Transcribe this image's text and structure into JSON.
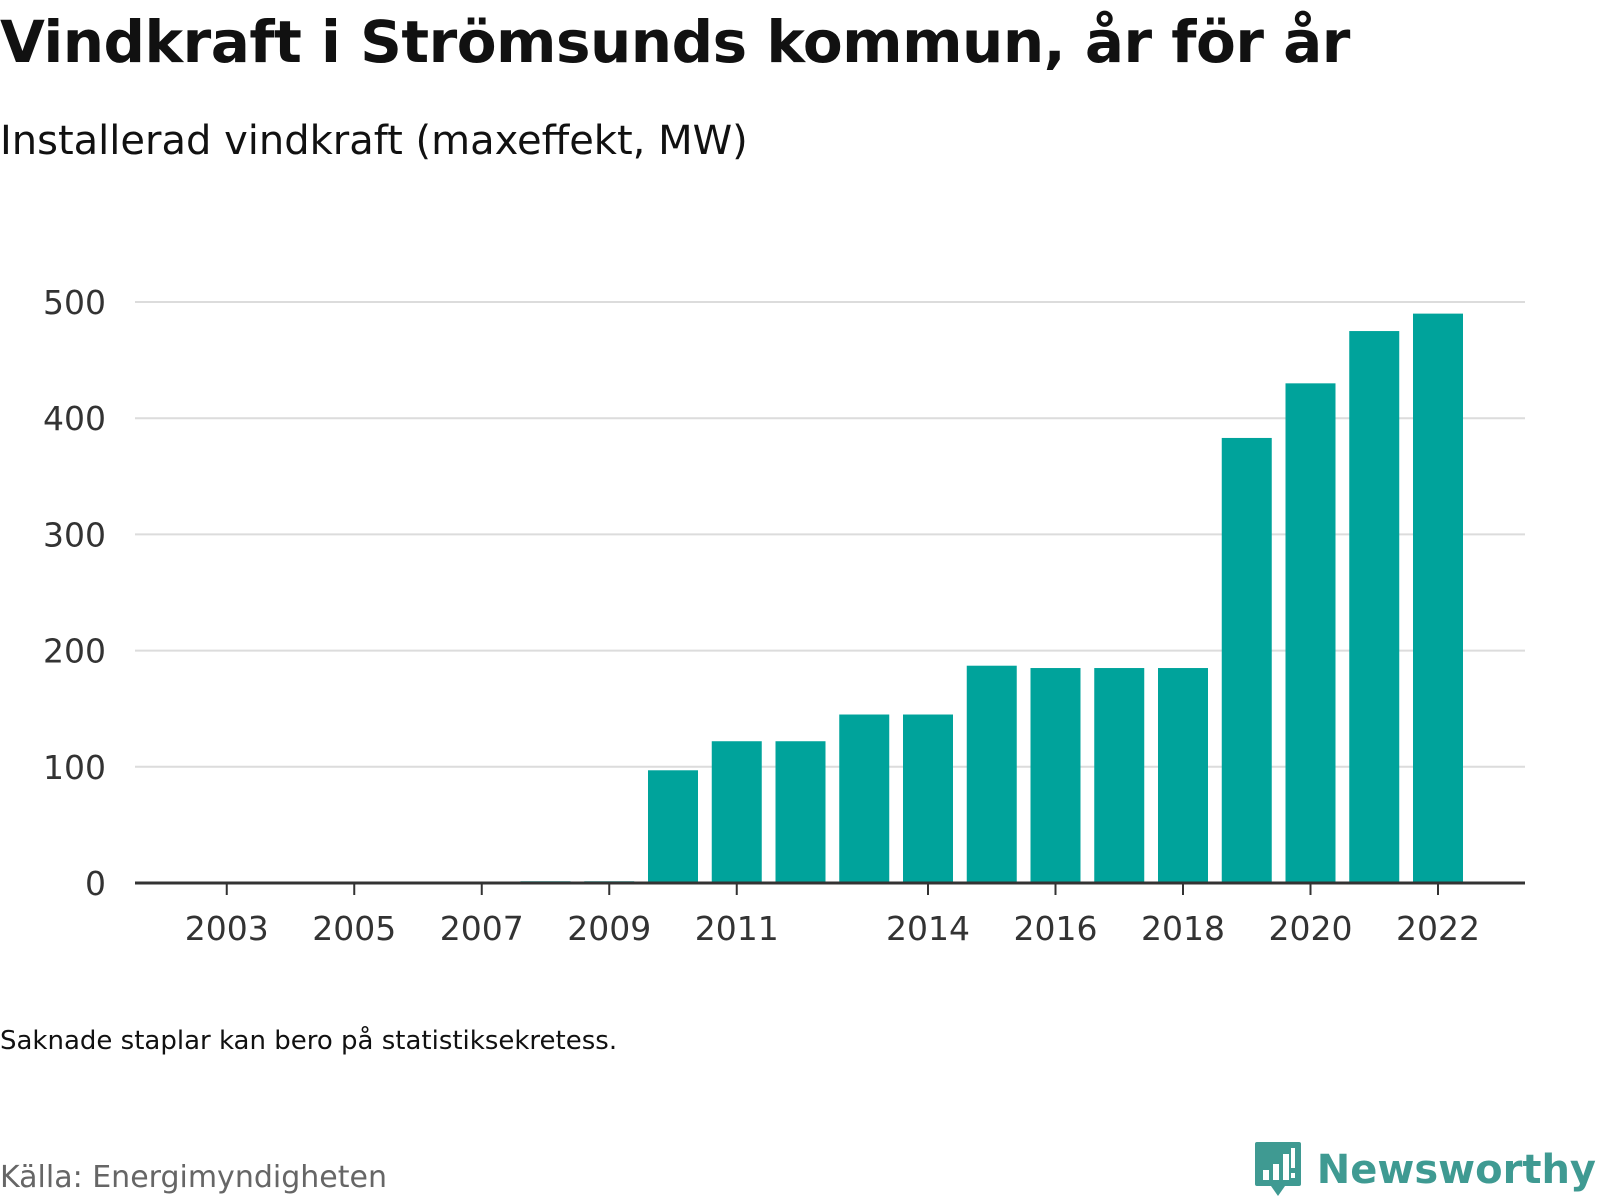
{
  "header": {
    "title": "Vindkraft i Strömsunds kommun, år för år",
    "subtitle": "Installerad vindkraft (maxeffekt, MW)"
  },
  "footer": {
    "note": "Saknade staplar kan bero på statistiksekretess.",
    "source": "Källa: Energimyndigheten",
    "brand": "Newsworthy"
  },
  "colors": {
    "bar": "#00a39b",
    "grid": "#dcdcdc",
    "axis": "#333333",
    "brand": "#3f9a92"
  },
  "chart_data": {
    "type": "bar",
    "title": "Vindkraft i Strömsunds kommun, år för år",
    "subtitle": "Installerad vindkraft (maxeffekt, MW)",
    "xlabel": "",
    "ylabel": "",
    "ylim": [
      0,
      500
    ],
    "yticks": [
      0,
      100,
      200,
      300,
      400,
      500
    ],
    "xticks": [
      "2003",
      "2005",
      "2007",
      "2009",
      "2011",
      "2014",
      "2016",
      "2018",
      "2020",
      "2022"
    ],
    "grid": true,
    "legend": "none",
    "categories": [
      "2002",
      "2003",
      "2004",
      "2005",
      "2006",
      "2007",
      "2008",
      "2009",
      "2010",
      "2011",
      "2012",
      "2013",
      "2014",
      "2015",
      "2016",
      "2017",
      "2018",
      "2019",
      "2020",
      "2021",
      "2022"
    ],
    "values": [
      0,
      0,
      0,
      0,
      0,
      0,
      1.5,
      1.5,
      97,
      122,
      122,
      145,
      145,
      187,
      185,
      185,
      185,
      383,
      430,
      475,
      490
    ]
  }
}
